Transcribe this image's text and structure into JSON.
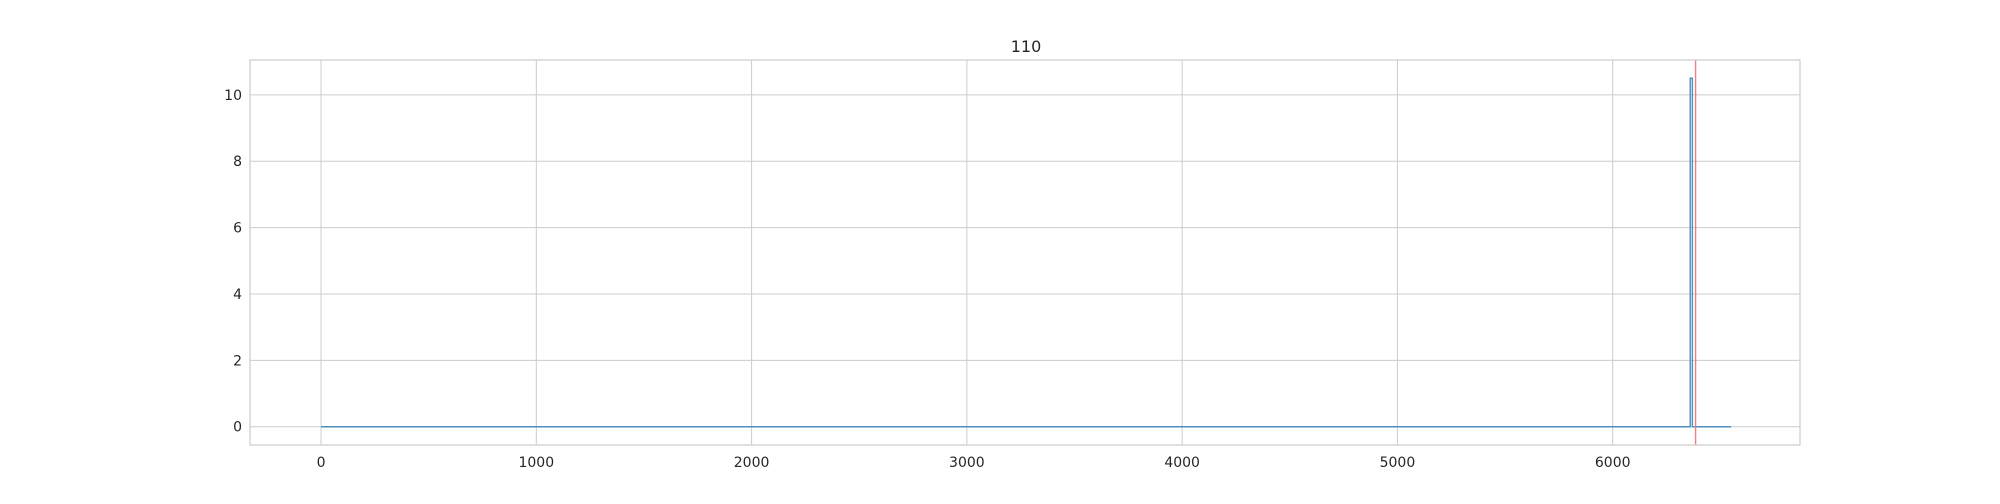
{
  "chart_data": {
    "type": "line",
    "title": "110",
    "xlabel": "",
    "ylabel": "",
    "xlim": [
      -330,
      6870
    ],
    "ylim": [
      -0.55,
      11.05
    ],
    "grid": true,
    "x_ticks": [
      0,
      1000,
      2000,
      3000,
      4000,
      5000,
      6000
    ],
    "y_ticks": [
      0,
      2,
      4,
      6,
      8,
      10
    ],
    "series": [
      {
        "color": "#4c8fbd",
        "points": [
          [
            0,
            0
          ],
          [
            6360,
            0
          ],
          [
            6360,
            10.5
          ],
          [
            6370,
            10.5
          ],
          [
            6370,
            0
          ],
          [
            6550,
            0
          ]
        ]
      }
    ],
    "vlines": [
      {
        "x": 6385,
        "color": "#f08080"
      }
    ],
    "colors": {
      "grid": "#cccccc",
      "frame": "#cccccc",
      "text": "#262626"
    }
  }
}
